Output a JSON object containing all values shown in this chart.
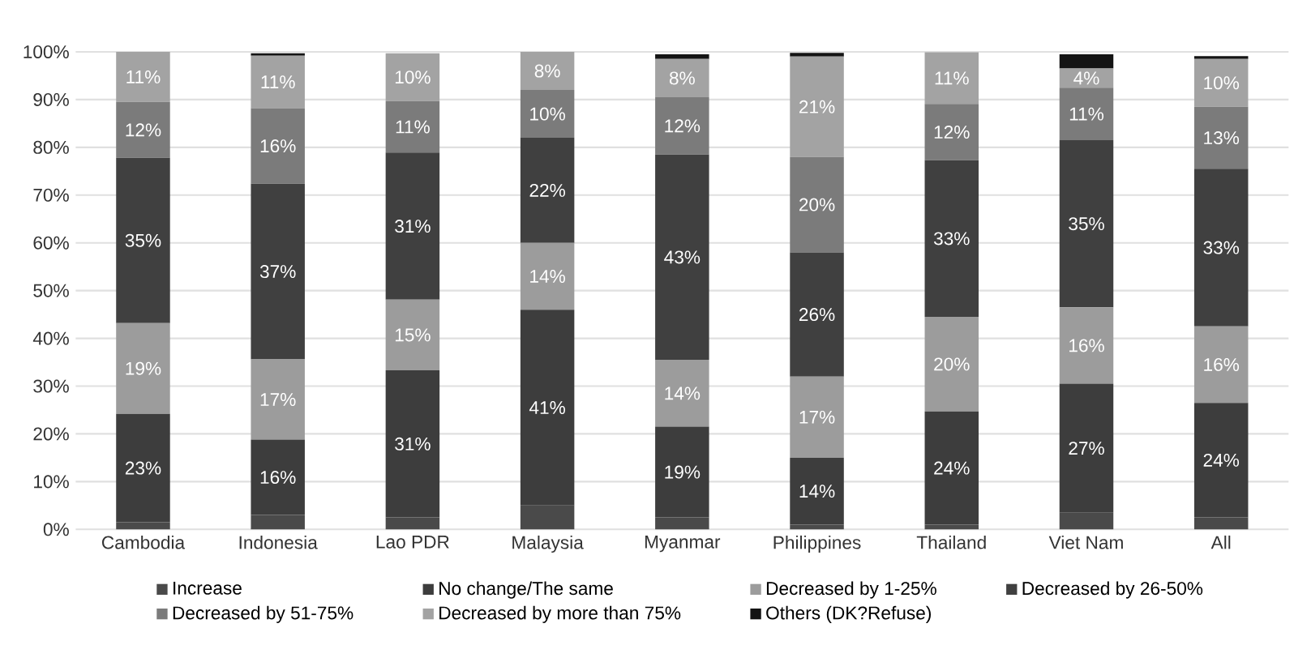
{
  "chart_data": {
    "type": "bar",
    "stacked": true,
    "grid": "y",
    "legend": "bottom",
    "categories": [
      "Cambodia",
      "Indonesia",
      "Lao PDR",
      "Malaysia",
      "Myanmar",
      "Philippines",
      "Thailand",
      "Viet Nam",
      "All"
    ],
    "ylim": [
      0,
      100
    ],
    "yticks": [
      {
        "value": 0,
        "label": "0%"
      },
      {
        "value": 10,
        "label": "10%"
      },
      {
        "value": 20,
        "label": "20%"
      },
      {
        "value": 30,
        "label": "30%"
      },
      {
        "value": 40,
        "label": "40%"
      },
      {
        "value": 50,
        "label": "50%"
      },
      {
        "value": 60,
        "label": "60%"
      },
      {
        "value": 70,
        "label": "70%"
      },
      {
        "value": 80,
        "label": "80%"
      },
      {
        "value": 90,
        "label": "90%"
      },
      {
        "value": 100,
        "label": "100%"
      }
    ],
    "series": [
      {
        "name": "Increase",
        "color": "#4a4a4a",
        "values": [
          1.5,
          3,
          2.5,
          5,
          2.5,
          1,
          1,
          3.5,
          2.5
        ]
      },
      {
        "name": "No change/The same",
        "color": "#3d3d3d",
        "values": [
          22.7,
          15.8,
          30.8,
          41,
          19,
          14,
          23.7,
          27,
          24
        ],
        "value_labels": [
          "23%",
          "16%",
          "31%",
          "41%",
          "19%",
          "14%",
          "24%",
          "27%",
          "24%"
        ]
      },
      {
        "name": "Decreased by 1-25%",
        "color": "#9c9c9c",
        "values": [
          19,
          16.8,
          14.8,
          14,
          14,
          17,
          19.8,
          16,
          16
        ],
        "value_labels": [
          "19%",
          "17%",
          "15%",
          "14%",
          "14%",
          "17%",
          "20%",
          "16%",
          "16%"
        ]
      },
      {
        "name": "Decreased by 26-50%",
        "color": "#404040",
        "values": [
          34.6,
          36.8,
          30.8,
          22,
          43,
          26,
          32.8,
          35,
          33
        ],
        "value_labels": [
          "35%",
          "37%",
          "31%",
          "22%",
          "43%",
          "26%",
          "33%",
          "35%",
          "33%"
        ]
      },
      {
        "name": "Decreased by 51-75%",
        "color": "#7b7b7b",
        "values": [
          11.7,
          15.8,
          10.8,
          10,
          12,
          20,
          11.8,
          11,
          13
        ],
        "value_labels": [
          "12%",
          "16%",
          "11%",
          "10%",
          "12%",
          "20%",
          "12%",
          "11%",
          "13%"
        ]
      },
      {
        "name": "Decreased by more than 75%",
        "color": "#a3a3a3",
        "values": [
          10.5,
          11,
          10,
          8,
          8,
          21,
          10.8,
          4,
          10
        ],
        "value_labels": [
          "11%",
          "11%",
          "10%",
          "8%",
          "8%",
          "21%",
          "11%",
          "4%",
          "10%"
        ]
      },
      {
        "name": "Others (DK?Refuse)",
        "color": "#141414",
        "values": [
          0,
          0.5,
          0,
          0,
          1,
          0.8,
          0,
          3,
          0.6
        ]
      }
    ]
  }
}
